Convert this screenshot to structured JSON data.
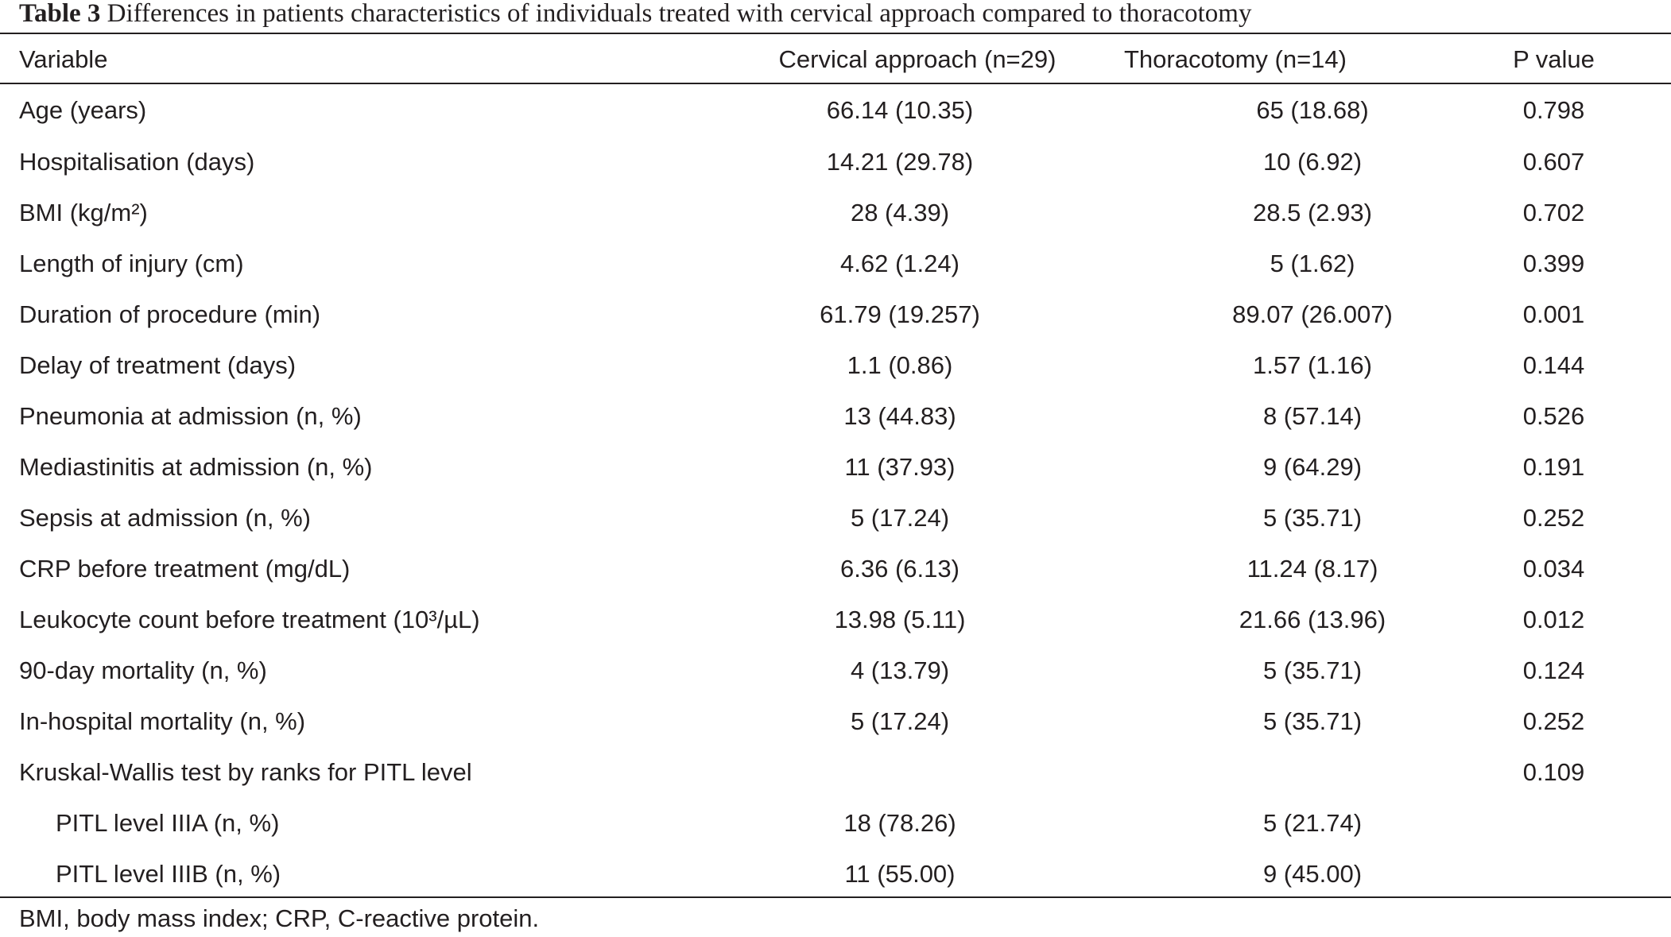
{
  "caption": {
    "label": "Table 3",
    "text": "Differences in patients characteristics of individuals treated with cervical approach compared to thoracotomy"
  },
  "headers": {
    "variable": "Variable",
    "cervical": "Cervical approach (n=29)",
    "thoracotomy": "Thoracotomy  (n=14)",
    "p_value": "P value"
  },
  "rows": [
    {
      "variable": "Age (years)",
      "cervical": "66.14 (10.35)",
      "thoracotomy": "65 (18.68)",
      "p": "0.798",
      "indent": false
    },
    {
      "variable": "Hospitalisation (days)",
      "cervical": "14.21 (29.78)",
      "thoracotomy": "10 (6.92)",
      "p": "0.607",
      "indent": false
    },
    {
      "variable": "BMI (kg/m²)",
      "cervical": "28 (4.39)",
      "thoracotomy": "28.5 (2.93)",
      "p": "0.702",
      "indent": false
    },
    {
      "variable": "Length of injury (cm)",
      "cervical": "4.62 (1.24)",
      "thoracotomy": "5 (1.62)",
      "p": "0.399",
      "indent": false
    },
    {
      "variable": "Duration of procedure (min)",
      "cervical": "61.79 (19.257)",
      "thoracotomy": "89.07 (26.007)",
      "p": "0.001",
      "indent": false
    },
    {
      "variable": "Delay of treatment (days)",
      "cervical": "1.1 (0.86)",
      "thoracotomy": "1.57 (1.16)",
      "p": "0.144",
      "indent": false
    },
    {
      "variable": "Pneumonia at admission (n, %)",
      "cervical": "13 (44.83)",
      "thoracotomy": "8 (57.14)",
      "p": "0.526",
      "indent": false
    },
    {
      "variable": "Mediastinitis at admission (n, %)",
      "cervical": "11 (37.93)",
      "thoracotomy": "9 (64.29)",
      "p": "0.191",
      "indent": false
    },
    {
      "variable": "Sepsis at admission (n, %)",
      "cervical": "5 (17.24)",
      "thoracotomy": "5 (35.71)",
      "p": "0.252",
      "indent": false
    },
    {
      "variable": "CRP before treatment (mg/dL)",
      "cervical": "6.36 (6.13)",
      "thoracotomy": "11.24 (8.17)",
      "p": "0.034",
      "indent": false
    },
    {
      "variable": "Leukocyte count before treatment (10³/µL)",
      "cervical": "13.98 (5.11)",
      "thoracotomy": "21.66 (13.96)",
      "p": "0.012",
      "indent": false
    },
    {
      "variable": "90-day mortality (n, %)",
      "cervical": "4 (13.79)",
      "thoracotomy": "5 (35.71)",
      "p": "0.124",
      "indent": false
    },
    {
      "variable": "In-hospital mortality (n, %)",
      "cervical": "5 (17.24)",
      "thoracotomy": "5 (35.71)",
      "p": "0.252",
      "indent": false
    },
    {
      "variable": "Kruskal-Wallis test by ranks for PITL level",
      "cervical": "",
      "thoracotomy": "",
      "p": "0.109",
      "indent": false
    },
    {
      "variable": "PITL level IIIA (n, %)",
      "cervical": "18 (78.26)",
      "thoracotomy": "5 (21.74)",
      "p": "",
      "indent": true
    },
    {
      "variable": "PITL level IIIB (n, %)",
      "cervical": "11 (55.00)",
      "thoracotomy": "9 (45.00)",
      "p": "",
      "indent": true
    }
  ],
  "footnote": "BMI, body mass index; CRP, C-reactive protein."
}
